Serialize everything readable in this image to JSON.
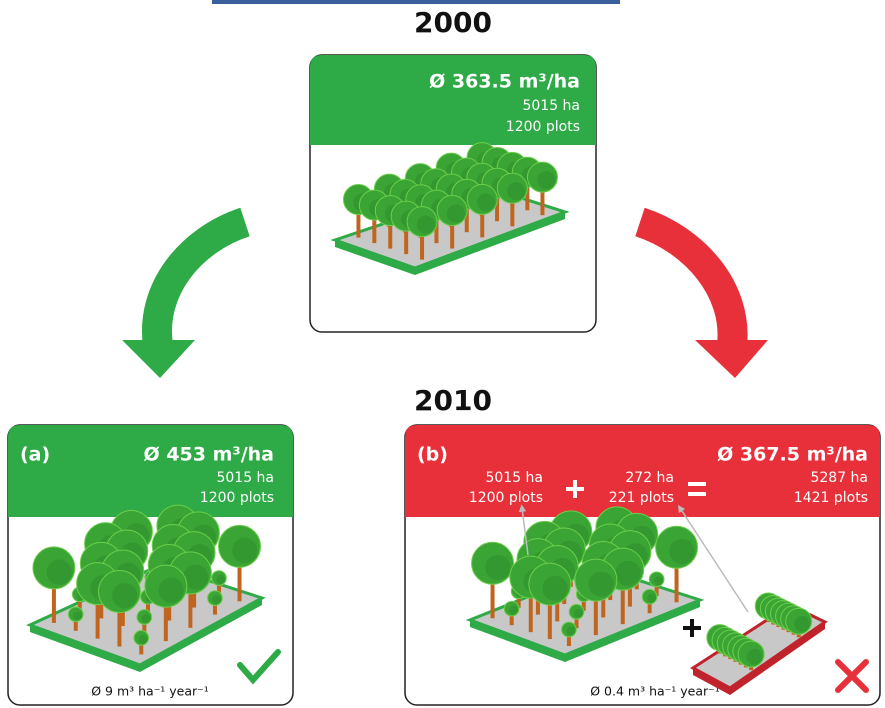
{
  "top": {
    "year": "2000",
    "density": "Ø 363.5 m³/ha",
    "area": "5015 ha",
    "plots": "1200 plots"
  },
  "bottom_year": "2010",
  "panels": [
    {
      "label": "(a)",
      "density": "Ø 453 m³/ha",
      "area": "5015 ha",
      "plots": "1200 plots",
      "growth": "Ø 9 m³ ha⁻¹ year⁻¹"
    },
    {
      "label": "(b)",
      "old_area": "5015 ha",
      "old_plots": "1200 plots",
      "new_area": "272 ha",
      "new_plots": "221 plots",
      "density": "Ø 367.5 m³/ha",
      "area": "5287 ha",
      "plots": "1421 plots",
      "growth": "Ø 0.4 m³ ha⁻¹ year⁻¹"
    }
  ]
}
